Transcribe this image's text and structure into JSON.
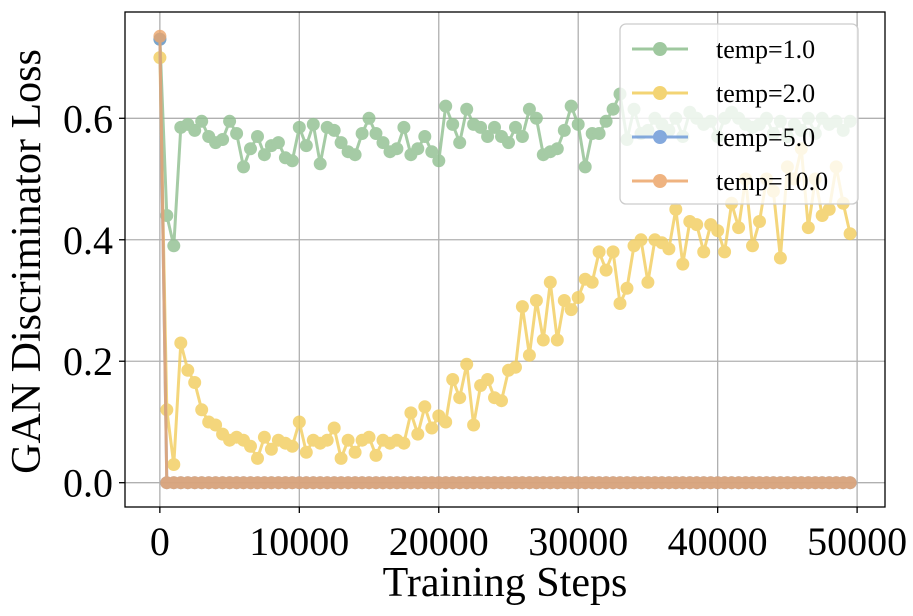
{
  "chart_data": {
    "type": "line",
    "title": "",
    "xlabel": "Training Steps",
    "ylabel": "GAN Discriminator Loss",
    "xlim": [
      -2500,
      52000
    ],
    "ylim": [
      -0.04,
      0.775
    ],
    "xticks": [
      0,
      10000,
      20000,
      30000,
      40000,
      50000
    ],
    "yticks": [
      0.0,
      0.2,
      0.4,
      0.6
    ],
    "xtick_labels": [
      "0",
      "10000",
      "20000",
      "30000",
      "40000",
      "50000"
    ],
    "ytick_labels": [
      "0.0",
      "0.2",
      "0.4",
      "0.6"
    ],
    "grid": true,
    "legend_position": "top-right",
    "x_start": 0,
    "x_step": 500,
    "series": [
      {
        "name": "temp=1.0",
        "color": "#8fbf8f",
        "values": [
          0.73,
          0.44,
          0.39,
          0.585,
          0.59,
          0.58,
          0.595,
          0.57,
          0.56,
          0.565,
          0.595,
          0.575,
          0.52,
          0.55,
          0.57,
          0.54,
          0.555,
          0.56,
          0.535,
          0.53,
          0.585,
          0.555,
          0.59,
          0.525,
          0.585,
          0.58,
          0.56,
          0.545,
          0.54,
          0.575,
          0.6,
          0.575,
          0.56,
          0.545,
          0.55,
          0.585,
          0.54,
          0.55,
          0.57,
          0.545,
          0.53,
          0.62,
          0.59,
          0.56,
          0.615,
          0.59,
          0.585,
          0.57,
          0.585,
          0.57,
          0.56,
          0.585,
          0.57,
          0.615,
          0.6,
          0.54,
          0.545,
          0.55,
          0.58,
          0.62,
          0.59,
          0.52,
          0.575,
          0.575,
          0.595,
          0.615,
          0.64,
          0.565,
          0.615,
          0.575,
          0.58,
          0.6,
          0.59,
          0.58,
          0.6,
          0.57,
          0.61,
          0.6,
          0.59,
          0.595,
          0.57,
          0.6,
          0.61,
          0.6,
          0.59,
          0.585,
          0.59,
          0.6,
          0.575,
          0.595,
          0.57,
          0.59,
          0.58,
          0.6,
          0.575,
          0.6,
          0.59,
          0.595,
          0.58,
          0.595
        ]
      },
      {
        "name": "temp=2.0",
        "color": "#f2cd5c",
        "values": [
          0.7,
          0.12,
          0.03,
          0.23,
          0.185,
          0.165,
          0.12,
          0.1,
          0.095,
          0.08,
          0.07,
          0.075,
          0.07,
          0.06,
          0.04,
          0.075,
          0.055,
          0.07,
          0.065,
          0.06,
          0.1,
          0.05,
          0.07,
          0.065,
          0.07,
          0.09,
          0.04,
          0.07,
          0.05,
          0.07,
          0.075,
          0.045,
          0.07,
          0.065,
          0.07,
          0.065,
          0.115,
          0.08,
          0.125,
          0.09,
          0.11,
          0.1,
          0.17,
          0.14,
          0.195,
          0.095,
          0.16,
          0.17,
          0.14,
          0.135,
          0.185,
          0.19,
          0.29,
          0.21,
          0.3,
          0.235,
          0.33,
          0.235,
          0.3,
          0.285,
          0.305,
          0.335,
          0.33,
          0.38,
          0.35,
          0.38,
          0.295,
          0.32,
          0.39,
          0.4,
          0.33,
          0.4,
          0.395,
          0.385,
          0.45,
          0.36,
          0.43,
          0.425,
          0.38,
          0.425,
          0.415,
          0.38,
          0.46,
          0.42,
          0.5,
          0.39,
          0.43,
          0.5,
          0.48,
          0.37,
          0.52,
          0.5,
          0.55,
          0.42,
          0.5,
          0.44,
          0.45,
          0.52,
          0.46,
          0.41
        ]
      },
      {
        "name": "temp=5.0",
        "color": "#6f9bd8",
        "values": [
          0.73,
          0.0,
          0.0,
          0.0,
          0.0,
          0.0,
          0.0,
          0.0,
          0.0,
          0.0,
          0.0,
          0.0,
          0.0,
          0.0,
          0.0,
          0.0,
          0.0,
          0.0,
          0.0,
          0.0,
          0.0,
          0.0,
          0.0,
          0.0,
          0.0,
          0.0,
          0.0,
          0.0,
          0.0,
          0.0,
          0.0,
          0.0,
          0.0,
          0.0,
          0.0,
          0.0,
          0.0,
          0.0,
          0.0,
          0.0,
          0.0,
          0.0,
          0.0,
          0.0,
          0.0,
          0.0,
          0.0,
          0.0,
          0.0,
          0.0,
          0.0,
          0.0,
          0.0,
          0.0,
          0.0,
          0.0,
          0.0,
          0.0,
          0.0,
          0.0,
          0.0,
          0.0,
          0.0,
          0.0,
          0.0,
          0.0,
          0.0,
          0.0,
          0.0,
          0.0,
          0.0,
          0.0,
          0.0,
          0.0,
          0.0,
          0.0,
          0.0,
          0.0,
          0.0,
          0.0,
          0.0,
          0.0,
          0.0,
          0.0,
          0.0,
          0.0,
          0.0,
          0.0,
          0.0,
          0.0,
          0.0,
          0.0,
          0.0,
          0.0,
          0.0,
          0.0,
          0.0,
          0.0,
          0.0,
          0.0
        ]
      },
      {
        "name": "temp=10.0",
        "color": "#eda66b",
        "values": [
          0.735,
          0.0,
          0.0,
          0.0,
          0.0,
          0.0,
          0.0,
          0.0,
          0.0,
          0.0,
          0.0,
          0.0,
          0.0,
          0.0,
          0.0,
          0.0,
          0.0,
          0.0,
          0.0,
          0.0,
          0.0,
          0.0,
          0.0,
          0.0,
          0.0,
          0.0,
          0.0,
          0.0,
          0.0,
          0.0,
          0.0,
          0.0,
          0.0,
          0.0,
          0.0,
          0.0,
          0.0,
          0.0,
          0.0,
          0.0,
          0.0,
          0.0,
          0.0,
          0.0,
          0.0,
          0.0,
          0.0,
          0.0,
          0.0,
          0.0,
          0.0,
          0.0,
          0.0,
          0.0,
          0.0,
          0.0,
          0.0,
          0.0,
          0.0,
          0.0,
          0.0,
          0.0,
          0.0,
          0.0,
          0.0,
          0.0,
          0.0,
          0.0,
          0.0,
          0.0,
          0.0,
          0.0,
          0.0,
          0.0,
          0.0,
          0.0,
          0.0,
          0.0,
          0.0,
          0.0,
          0.0,
          0.0,
          0.0,
          0.0,
          0.0,
          0.0,
          0.0,
          0.0,
          0.0,
          0.0,
          0.0,
          0.0,
          0.0,
          0.0,
          0.0,
          0.0,
          0.0,
          0.0,
          0.0,
          0.0
        ]
      }
    ]
  }
}
